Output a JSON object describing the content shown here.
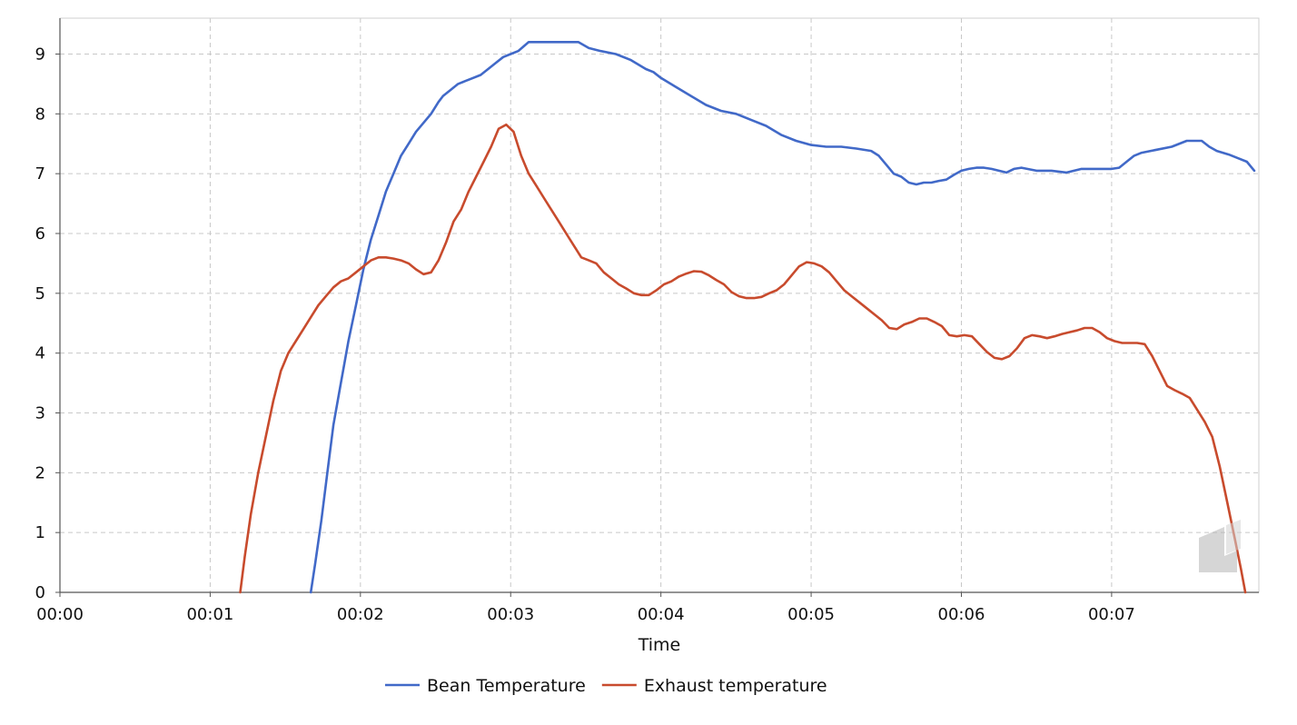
{
  "chart_data": {
    "type": "line",
    "title": "",
    "xlabel": "Time",
    "ylabel": "",
    "x_unit": "minutes",
    "xlim": [
      0,
      7.98
    ],
    "ylim": [
      0,
      9.6
    ],
    "grid": true,
    "legend_position": "bottom",
    "x_ticks": [
      {
        "value": 0,
        "label": "00:00"
      },
      {
        "value": 1,
        "label": "00:01"
      },
      {
        "value": 2,
        "label": "00:02"
      },
      {
        "value": 3,
        "label": "00:03"
      },
      {
        "value": 4,
        "label": "00:04"
      },
      {
        "value": 5,
        "label": "00:05"
      },
      {
        "value": 6,
        "label": "00:06"
      },
      {
        "value": 7,
        "label": "00:07"
      }
    ],
    "y_ticks": [
      {
        "value": 0,
        "label": "0"
      },
      {
        "value": 1,
        "label": "1"
      },
      {
        "value": 2,
        "label": "2"
      },
      {
        "value": 3,
        "label": "3"
      },
      {
        "value": 4,
        "label": "4"
      },
      {
        "value": 5,
        "label": "5"
      },
      {
        "value": 6,
        "label": "6"
      },
      {
        "value": 7,
        "label": "7"
      },
      {
        "value": 8,
        "label": "8"
      },
      {
        "value": 9,
        "label": "9"
      }
    ],
    "series": [
      {
        "name": "Bean Temperature",
        "color": "#4169c8",
        "points": [
          [
            1.67,
            0
          ],
          [
            1.7,
            0.5
          ],
          [
            1.74,
            1.2
          ],
          [
            1.78,
            2.0
          ],
          [
            1.82,
            2.8
          ],
          [
            1.87,
            3.5
          ],
          [
            1.92,
            4.2
          ],
          [
            1.97,
            4.8
          ],
          [
            2.02,
            5.4
          ],
          [
            2.07,
            5.9
          ],
          [
            2.12,
            6.3
          ],
          [
            2.17,
            6.7
          ],
          [
            2.22,
            7.0
          ],
          [
            2.27,
            7.3
          ],
          [
            2.32,
            7.5
          ],
          [
            2.37,
            7.7
          ],
          [
            2.42,
            7.85
          ],
          [
            2.47,
            8.0
          ],
          [
            2.52,
            8.2
          ],
          [
            2.55,
            8.3
          ],
          [
            2.6,
            8.4
          ],
          [
            2.65,
            8.5
          ],
          [
            2.7,
            8.55
          ],
          [
            2.75,
            8.6
          ],
          [
            2.8,
            8.65
          ],
          [
            2.85,
            8.75
          ],
          [
            2.9,
            8.85
          ],
          [
            2.95,
            8.95
          ],
          [
            3.0,
            9.0
          ],
          [
            3.05,
            9.05
          ],
          [
            3.12,
            9.2
          ],
          [
            3.2,
            9.2
          ],
          [
            3.3,
            9.2
          ],
          [
            3.45,
            9.2
          ],
          [
            3.52,
            9.1
          ],
          [
            3.6,
            9.05
          ],
          [
            3.7,
            9.0
          ],
          [
            3.8,
            8.9
          ],
          [
            3.9,
            8.75
          ],
          [
            3.95,
            8.7
          ],
          [
            4.0,
            8.6
          ],
          [
            4.1,
            8.45
          ],
          [
            4.2,
            8.3
          ],
          [
            4.3,
            8.15
          ],
          [
            4.4,
            8.05
          ],
          [
            4.5,
            8.0
          ],
          [
            4.6,
            7.9
          ],
          [
            4.7,
            7.8
          ],
          [
            4.8,
            7.65
          ],
          [
            4.9,
            7.55
          ],
          [
            5.0,
            7.48
          ],
          [
            5.1,
            7.45
          ],
          [
            5.2,
            7.45
          ],
          [
            5.3,
            7.42
          ],
          [
            5.4,
            7.38
          ],
          [
            5.45,
            7.3
          ],
          [
            5.5,
            7.15
          ],
          [
            5.55,
            7.0
          ],
          [
            5.6,
            6.95
          ],
          [
            5.65,
            6.85
          ],
          [
            5.7,
            6.82
          ],
          [
            5.75,
            6.85
          ],
          [
            5.8,
            6.85
          ],
          [
            5.85,
            6.88
          ],
          [
            5.9,
            6.9
          ],
          [
            5.95,
            6.98
          ],
          [
            6.0,
            7.05
          ],
          [
            6.05,
            7.08
          ],
          [
            6.1,
            7.1
          ],
          [
            6.15,
            7.1
          ],
          [
            6.2,
            7.08
          ],
          [
            6.25,
            7.05
          ],
          [
            6.3,
            7.02
          ],
          [
            6.35,
            7.08
          ],
          [
            6.4,
            7.1
          ],
          [
            6.5,
            7.05
          ],
          [
            6.6,
            7.05
          ],
          [
            6.7,
            7.02
          ],
          [
            6.75,
            7.05
          ],
          [
            6.8,
            7.08
          ],
          [
            6.9,
            7.08
          ],
          [
            7.0,
            7.08
          ],
          [
            7.05,
            7.1
          ],
          [
            7.1,
            7.2
          ],
          [
            7.15,
            7.3
          ],
          [
            7.2,
            7.35
          ],
          [
            7.3,
            7.4
          ],
          [
            7.4,
            7.45
          ],
          [
            7.5,
            7.55
          ],
          [
            7.6,
            7.55
          ],
          [
            7.65,
            7.45
          ],
          [
            7.7,
            7.38
          ],
          [
            7.78,
            7.32
          ],
          [
            7.85,
            7.25
          ],
          [
            7.9,
            7.2
          ],
          [
            7.95,
            7.05
          ]
        ]
      },
      {
        "name": "Exhaust temperature",
        "color": "#c84b2d",
        "points": [
          [
            1.2,
            0
          ],
          [
            1.23,
            0.6
          ],
          [
            1.27,
            1.3
          ],
          [
            1.32,
            2.0
          ],
          [
            1.37,
            2.6
          ],
          [
            1.42,
            3.2
          ],
          [
            1.47,
            3.7
          ],
          [
            1.52,
            4.0
          ],
          [
            1.57,
            4.2
          ],
          [
            1.62,
            4.4
          ],
          [
            1.67,
            4.6
          ],
          [
            1.72,
            4.8
          ],
          [
            1.77,
            4.95
          ],
          [
            1.82,
            5.1
          ],
          [
            1.87,
            5.2
          ],
          [
            1.92,
            5.25
          ],
          [
            1.97,
            5.35
          ],
          [
            2.02,
            5.45
          ],
          [
            2.07,
            5.55
          ],
          [
            2.12,
            5.6
          ],
          [
            2.17,
            5.6
          ],
          [
            2.22,
            5.58
          ],
          [
            2.27,
            5.55
          ],
          [
            2.32,
            5.5
          ],
          [
            2.37,
            5.4
          ],
          [
            2.42,
            5.32
          ],
          [
            2.47,
            5.35
          ],
          [
            2.52,
            5.55
          ],
          [
            2.57,
            5.85
          ],
          [
            2.62,
            6.2
          ],
          [
            2.67,
            6.4
          ],
          [
            2.72,
            6.7
          ],
          [
            2.77,
            6.95
          ],
          [
            2.82,
            7.2
          ],
          [
            2.87,
            7.45
          ],
          [
            2.92,
            7.75
          ],
          [
            2.97,
            7.82
          ],
          [
            3.02,
            7.7
          ],
          [
            3.07,
            7.3
          ],
          [
            3.12,
            7.0
          ],
          [
            3.17,
            6.8
          ],
          [
            3.22,
            6.6
          ],
          [
            3.27,
            6.4
          ],
          [
            3.32,
            6.2
          ],
          [
            3.37,
            6.0
          ],
          [
            3.42,
            5.8
          ],
          [
            3.47,
            5.6
          ],
          [
            3.52,
            5.55
          ],
          [
            3.57,
            5.5
          ],
          [
            3.62,
            5.35
          ],
          [
            3.67,
            5.25
          ],
          [
            3.72,
            5.15
          ],
          [
            3.77,
            5.08
          ],
          [
            3.82,
            5.0
          ],
          [
            3.87,
            4.97
          ],
          [
            3.92,
            4.97
          ],
          [
            3.97,
            5.05
          ],
          [
            4.02,
            5.15
          ],
          [
            4.07,
            5.2
          ],
          [
            4.12,
            5.28
          ],
          [
            4.17,
            5.33
          ],
          [
            4.22,
            5.37
          ],
          [
            4.27,
            5.36
          ],
          [
            4.32,
            5.3
          ],
          [
            4.37,
            5.22
          ],
          [
            4.42,
            5.15
          ],
          [
            4.47,
            5.02
          ],
          [
            4.52,
            4.95
          ],
          [
            4.57,
            4.92
          ],
          [
            4.62,
            4.92
          ],
          [
            4.67,
            4.94
          ],
          [
            4.72,
            5.0
          ],
          [
            4.77,
            5.05
          ],
          [
            4.82,
            5.15
          ],
          [
            4.87,
            5.3
          ],
          [
            4.92,
            5.45
          ],
          [
            4.97,
            5.52
          ],
          [
            5.02,
            5.5
          ],
          [
            5.07,
            5.45
          ],
          [
            5.12,
            5.35
          ],
          [
            5.17,
            5.2
          ],
          [
            5.22,
            5.05
          ],
          [
            5.27,
            4.95
          ],
          [
            5.32,
            4.85
          ],
          [
            5.37,
            4.75
          ],
          [
            5.42,
            4.65
          ],
          [
            5.47,
            4.55
          ],
          [
            5.52,
            4.42
          ],
          [
            5.57,
            4.4
          ],
          [
            5.62,
            4.48
          ],
          [
            5.67,
            4.52
          ],
          [
            5.72,
            4.58
          ],
          [
            5.77,
            4.58
          ],
          [
            5.82,
            4.52
          ],
          [
            5.87,
            4.45
          ],
          [
            5.92,
            4.3
          ],
          [
            5.97,
            4.28
          ],
          [
            6.02,
            4.3
          ],
          [
            6.07,
            4.28
          ],
          [
            6.12,
            4.15
          ],
          [
            6.17,
            4.02
          ],
          [
            6.22,
            3.92
          ],
          [
            6.27,
            3.9
          ],
          [
            6.32,
            3.95
          ],
          [
            6.37,
            4.08
          ],
          [
            6.42,
            4.25
          ],
          [
            6.47,
            4.3
          ],
          [
            6.52,
            4.28
          ],
          [
            6.57,
            4.25
          ],
          [
            6.62,
            4.28
          ],
          [
            6.67,
            4.32
          ],
          [
            6.72,
            4.35
          ],
          [
            6.77,
            4.38
          ],
          [
            6.82,
            4.42
          ],
          [
            6.87,
            4.42
          ],
          [
            6.92,
            4.35
          ],
          [
            6.97,
            4.25
          ],
          [
            7.02,
            4.2
          ],
          [
            7.07,
            4.17
          ],
          [
            7.12,
            4.17
          ],
          [
            7.17,
            4.17
          ],
          [
            7.22,
            4.15
          ],
          [
            7.27,
            3.95
          ],
          [
            7.32,
            3.7
          ],
          [
            7.37,
            3.45
          ],
          [
            7.42,
            3.38
          ],
          [
            7.47,
            3.32
          ],
          [
            7.52,
            3.25
          ],
          [
            7.57,
            3.05
          ],
          [
            7.62,
            2.85
          ],
          [
            7.67,
            2.6
          ],
          [
            7.72,
            2.1
          ],
          [
            7.77,
            1.5
          ],
          [
            7.82,
            0.9
          ],
          [
            7.86,
            0.4
          ],
          [
            7.89,
            0
          ]
        ]
      }
    ]
  }
}
